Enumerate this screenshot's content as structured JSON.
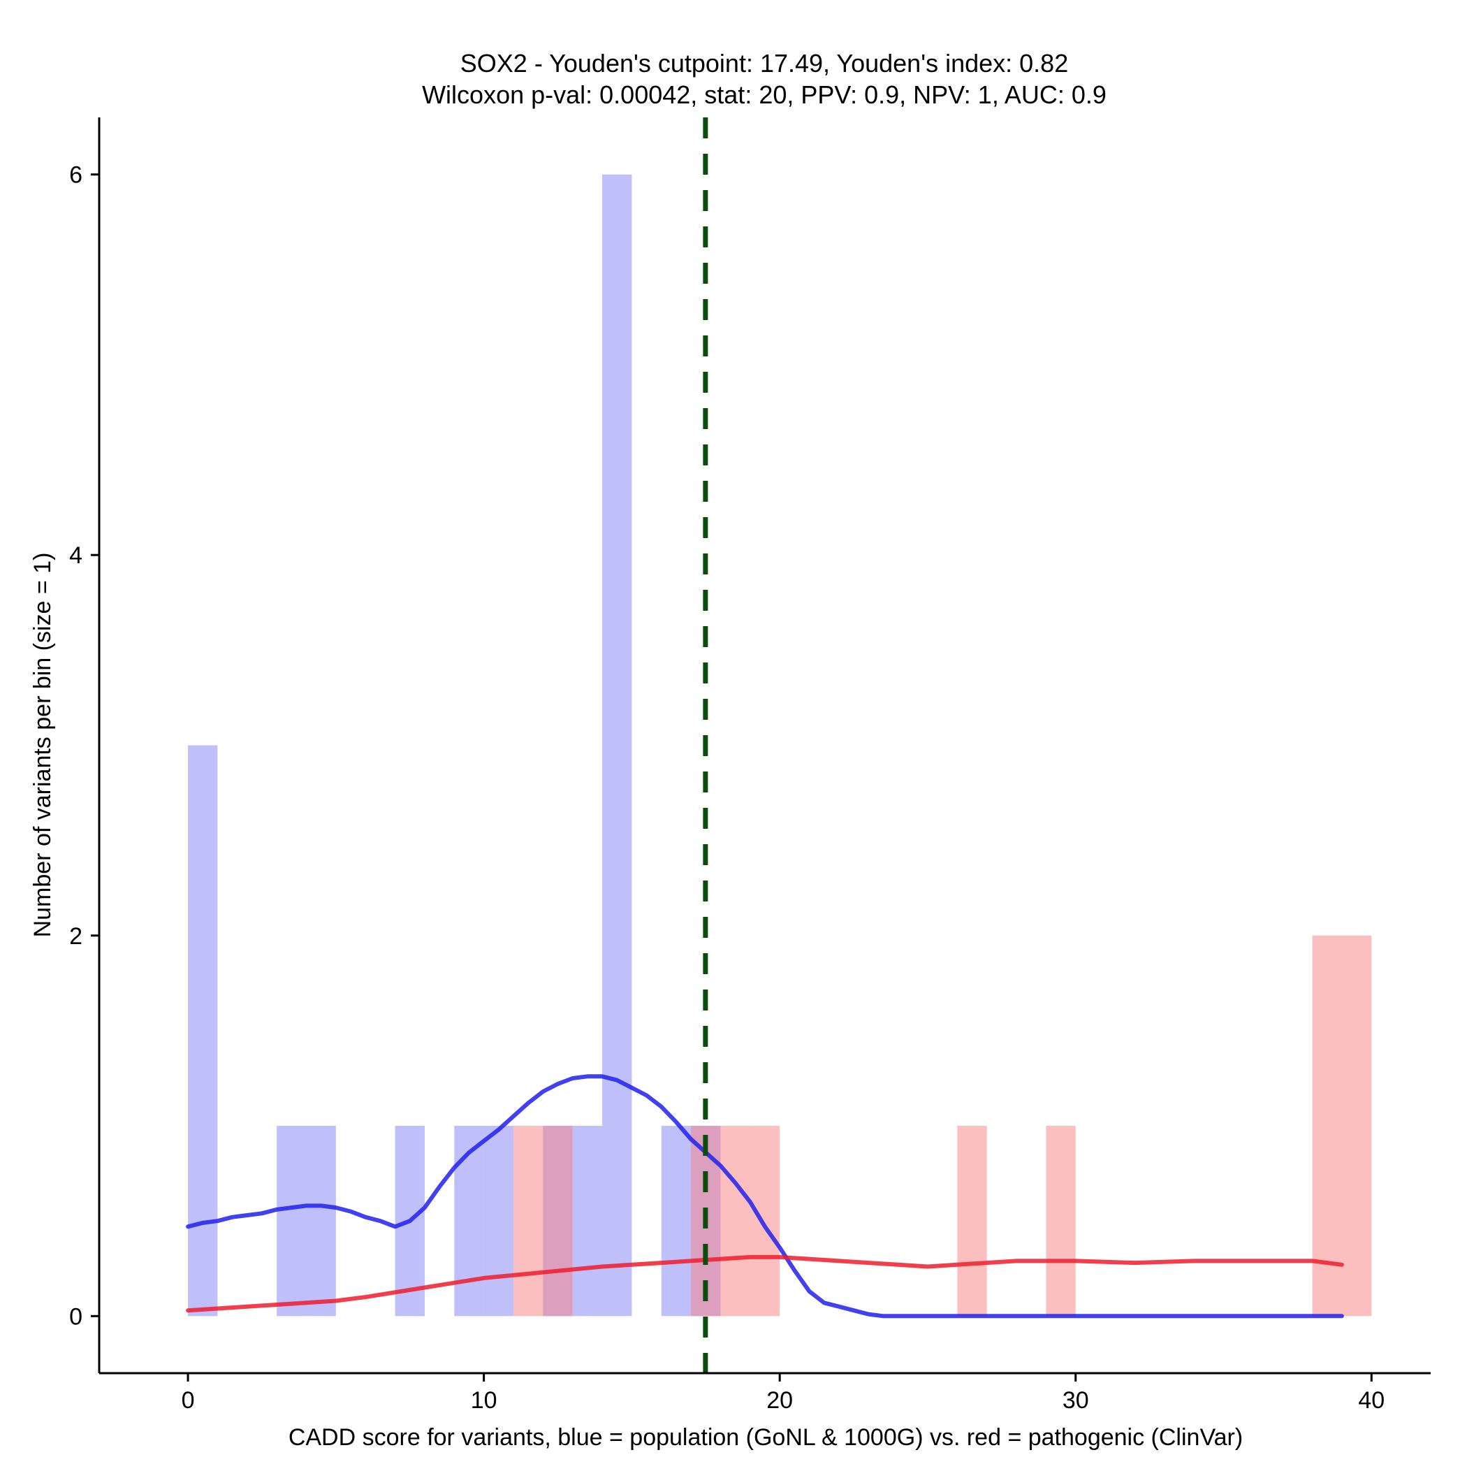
{
  "chart_data": {
    "type": "bar",
    "title": "SOX2 - Youden's cutpoint: 17.49, Youden's index: 0.82",
    "subtitle": "Wilcoxon p-val: 0.00042, stat: 20, PPV: 0.9, NPV: 1, AUC: 0.9",
    "xlabel": "CADD score for variants, blue = population (GoNL & 1000G) vs. red = pathogenic (ClinVar)",
    "ylabel": "Number of variants per bin (size = 1)",
    "xlim": [
      -3,
      42
    ],
    "ylim": [
      -0.3,
      6.3
    ],
    "xticks": [
      0,
      10,
      20,
      30,
      40
    ],
    "yticks": [
      0,
      2,
      4,
      6
    ],
    "bin_size": 1,
    "cutpoint": 17.49,
    "colors": {
      "population_bar": "#8080f5",
      "pathogenic_bar": "#fa8080",
      "population_density": "#2020ee",
      "pathogenic_density": "#f01c2c",
      "cutpoint_line": "#0b4d0b"
    },
    "series": [
      {
        "kind": "histogram",
        "bins": [
          {
            "x0": 0,
            "x1": 1,
            "count": 3
          },
          {
            "x0": 3,
            "x1": 4,
            "count": 1
          },
          {
            "x0": 4,
            "x1": 5,
            "count": 1
          },
          {
            "x0": 7,
            "x1": 8,
            "count": 1
          },
          {
            "x0": 9,
            "x1": 10,
            "count": 1
          },
          {
            "x0": 10,
            "x1": 11,
            "count": 1
          },
          {
            "x0": 12,
            "x1": 13,
            "count": 1
          },
          {
            "x0": 13,
            "x1": 14,
            "count": 1
          },
          {
            "x0": 14,
            "x1": 15,
            "count": 6
          },
          {
            "x0": 16,
            "x1": 17,
            "count": 1
          },
          {
            "x0": 17,
            "x1": 18,
            "count": 1
          }
        ]
      },
      {
        "kind": "histogram",
        "bins": [
          {
            "x0": 11,
            "x1": 12,
            "count": 1
          },
          {
            "x0": 12,
            "x1": 13,
            "count": 1
          },
          {
            "x0": 17,
            "x1": 18,
            "count": 1
          },
          {
            "x0": 18,
            "x1": 19,
            "count": 1
          },
          {
            "x0": 19,
            "x1": 20,
            "count": 1
          },
          {
            "x0": 26,
            "x1": 27,
            "count": 1
          },
          {
            "x0": 29,
            "x1": 30,
            "count": 1
          },
          {
            "x0": 38,
            "x1": 39,
            "count": 2
          },
          {
            "x0": 39,
            "x1": 40,
            "count": 2
          }
        ]
      },
      {
        "kind": "density",
        "x": [
          0,
          0.5,
          1,
          1.5,
          2,
          2.5,
          3,
          3.5,
          4,
          4.5,
          5,
          5.5,
          6,
          6.5,
          7,
          7.5,
          8,
          8.5,
          9,
          9.5,
          10,
          10.5,
          11,
          11.5,
          12,
          12.5,
          13,
          13.5,
          14,
          14.5,
          15,
          15.5,
          16,
          16.5,
          17,
          17.5,
          18,
          18.5,
          19,
          19.5,
          20,
          20.5,
          21,
          21.5,
          22,
          22.5,
          23,
          23.5,
          24,
          24.5,
          25,
          30,
          35,
          39
        ],
        "y": [
          0.47,
          0.49,
          0.5,
          0.52,
          0.53,
          0.54,
          0.56,
          0.57,
          0.58,
          0.58,
          0.57,
          0.55,
          0.52,
          0.5,
          0.47,
          0.5,
          0.57,
          0.68,
          0.78,
          0.86,
          0.92,
          0.98,
          1.05,
          1.12,
          1.18,
          1.22,
          1.25,
          1.26,
          1.26,
          1.24,
          1.2,
          1.16,
          1.1,
          1.02,
          0.93,
          0.86,
          0.79,
          0.7,
          0.6,
          0.47,
          0.36,
          0.24,
          0.13,
          0.07,
          0.05,
          0.03,
          0.01,
          0.0,
          0.0,
          0.0,
          0.0,
          0.0,
          0.0,
          0.0
        ]
      },
      {
        "kind": "density",
        "x": [
          0,
          2,
          4,
          5,
          6,
          8,
          10,
          12,
          14,
          16,
          18,
          19,
          20,
          22,
          24,
          25,
          26,
          28,
          30,
          32,
          34,
          36,
          38,
          39
        ],
        "y": [
          0.03,
          0.05,
          0.07,
          0.08,
          0.1,
          0.15,
          0.2,
          0.23,
          0.26,
          0.28,
          0.3,
          0.31,
          0.31,
          0.29,
          0.27,
          0.26,
          0.27,
          0.29,
          0.29,
          0.28,
          0.29,
          0.29,
          0.29,
          0.27
        ]
      }
    ]
  }
}
